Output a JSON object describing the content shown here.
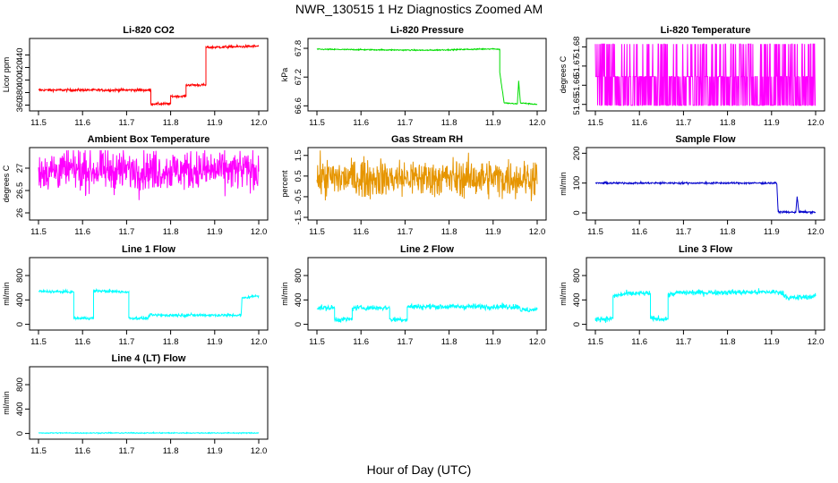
{
  "page": {
    "title": "NWR_130515  1 Hz Diagnostics Zoomed AM",
    "xlabel": "Hour of Day (UTC)"
  },
  "chart_data": [
    {
      "type": "line",
      "title": "Li-820 CO2",
      "ylabel": "Licor ppm",
      "xlim": [
        11.5,
        12.0
      ],
      "ylim": [
        355,
        462
      ],
      "x_ticks": [
        "11.5",
        "11.6",
        "11.7",
        "11.8",
        "11.9",
        "12.0"
      ],
      "y_ticks": [
        360,
        380,
        400,
        420,
        440
      ],
      "series": [
        {
          "color": "#ff0000",
          "noise": 1,
          "points": [
            [
              11.5,
              384
            ],
            [
              11.755,
              384
            ],
            [
              11.755,
              362
            ],
            [
              11.8,
              362
            ],
            [
              11.8,
              374
            ],
            [
              11.835,
              374
            ],
            [
              11.835,
              392
            ],
            [
              11.88,
              392
            ],
            [
              11.88,
              452
            ],
            [
              12.0,
              454
            ]
          ]
        }
      ]
    },
    {
      "type": "line",
      "title": "Li-820 Pressure",
      "ylabel": "kPa",
      "xlim": [
        11.5,
        12.0
      ],
      "ylim": [
        66.55,
        67.95
      ],
      "x_ticks": [
        "11.5",
        "11.6",
        "11.7",
        "11.8",
        "11.9",
        "12.0"
      ],
      "y_ticks": [
        66.6,
        67.2,
        67.8
      ],
      "series": [
        {
          "color": "#00dd00",
          "noise": 0.006,
          "points": [
            [
              11.5,
              67.78
            ],
            [
              11.75,
              67.76
            ],
            [
              11.9,
              67.79
            ],
            [
              11.915,
              67.78
            ],
            [
              11.915,
              67.3
            ],
            [
              11.925,
              66.66
            ],
            [
              11.955,
              66.64
            ],
            [
              11.958,
              67.12
            ],
            [
              11.962,
              66.66
            ],
            [
              12.0,
              66.63
            ]
          ]
        }
      ]
    },
    {
      "type": "line",
      "title": "Li-820 Temperature",
      "ylabel": "degrees C",
      "xlim": [
        11.5,
        12.0
      ],
      "ylim": [
        51.648,
        51.683
      ],
      "x_ticks": [
        "11.5",
        "11.6",
        "11.7",
        "11.8",
        "11.9",
        "12.0"
      ],
      "y_ticks": [
        51.65,
        51.66,
        51.67,
        51.68
      ],
      "series": [
        {
          "color": "#ff00ff",
          "kind": "quantized",
          "levels": [
            51.6495,
            51.6645,
            51.6815
          ],
          "points": [
            [
              11.5,
              51.665
            ],
            [
              12.0,
              51.665
            ]
          ]
        }
      ]
    },
    {
      "type": "line",
      "title": "Ambient Box Temperature",
      "ylabel": "degrees C",
      "xlim": [
        11.5,
        12.0
      ],
      "ylim": [
        25.9,
        27.4
      ],
      "x_ticks": [
        "11.5",
        "11.6",
        "11.7",
        "11.8",
        "11.9",
        "12.0"
      ],
      "y_ticks": [
        26.0,
        26.5,
        27.0
      ],
      "series": [
        {
          "color": "#ff00ff",
          "noise": 0.22,
          "points": [
            [
              11.5,
              26.95
            ],
            [
              12.0,
              26.95
            ]
          ]
        }
      ]
    },
    {
      "type": "line",
      "title": "Gas Stream RH",
      "ylabel": "percent",
      "xlim": [
        11.5,
        12.0
      ],
      "ylim": [
        -1.5,
        1.75
      ],
      "x_ticks": [
        "11.5",
        "11.6",
        "11.7",
        "11.8",
        "11.9",
        "12.0"
      ],
      "y_ticks": [
        -1.5,
        -0.5,
        0.5,
        1.5
      ],
      "series": [
        {
          "color": "#e69500",
          "noise": 0.45,
          "points": [
            [
              11.5,
              0.4
            ],
            [
              12.0,
              0.4
            ]
          ]
        }
      ]
    },
    {
      "type": "line",
      "title": "Sample Flow",
      "ylabel": "ml/min",
      "xlim": [
        11.5,
        12.0
      ],
      "ylim": [
        -15,
        210
      ],
      "x_ticks": [
        "11.5",
        "11.6",
        "11.7",
        "11.8",
        "11.9",
        "12.0"
      ],
      "y_ticks": [
        0,
        100,
        200
      ],
      "series": [
        {
          "color": "#0000cc",
          "noise": 1.5,
          "points": [
            [
              11.5,
              100
            ],
            [
              11.91,
              100
            ],
            [
              11.912,
              96
            ],
            [
              11.915,
              3
            ],
            [
              11.955,
              2
            ],
            [
              11.958,
              55
            ],
            [
              11.962,
              3
            ],
            [
              12.0,
              2
            ]
          ]
        }
      ]
    },
    {
      "type": "line",
      "title": "Line 1 Flow",
      "ylabel": "ml/min",
      "xlim": [
        11.5,
        12.0
      ],
      "ylim": [
        -50,
        1050
      ],
      "x_ticks": [
        "11.5",
        "11.6",
        "11.7",
        "11.8",
        "11.9",
        "12.0"
      ],
      "y_ticks": [
        0,
        400,
        800
      ],
      "series": [
        {
          "color": "#00ffff",
          "noise": 12,
          "points": [
            [
              11.5,
              540
            ],
            [
              11.58,
              530
            ],
            [
              11.58,
              100
            ],
            [
              11.625,
              100
            ],
            [
              11.625,
              550
            ],
            [
              11.705,
              530
            ],
            [
              11.705,
              100
            ],
            [
              11.75,
              100
            ],
            [
              11.75,
              150
            ],
            [
              11.96,
              150
            ],
            [
              11.962,
              430
            ],
            [
              12.0,
              470
            ]
          ]
        }
      ]
    },
    {
      "type": "line",
      "title": "Line 2 Flow",
      "ylabel": "ml/min",
      "xlim": [
        11.5,
        12.0
      ],
      "ylim": [
        -50,
        1050
      ],
      "x_ticks": [
        "11.5",
        "11.6",
        "11.7",
        "11.8",
        "11.9",
        "12.0"
      ],
      "y_ticks": [
        0,
        400,
        800
      ],
      "series": [
        {
          "color": "#00ffff",
          "noise": 22,
          "points": [
            [
              11.5,
              270
            ],
            [
              11.54,
              270
            ],
            [
              11.54,
              80
            ],
            [
              11.58,
              80
            ],
            [
              11.58,
              270
            ],
            [
              11.665,
              270
            ],
            [
              11.665,
              80
            ],
            [
              11.705,
              80
            ],
            [
              11.705,
              290
            ],
            [
              11.96,
              290
            ],
            [
              11.962,
              230
            ],
            [
              12.0,
              240
            ]
          ]
        }
      ]
    },
    {
      "type": "line",
      "title": "Line 3 Flow",
      "ylabel": "ml/min",
      "xlim": [
        11.5,
        12.0
      ],
      "ylim": [
        -50,
        1050
      ],
      "x_ticks": [
        "11.5",
        "11.6",
        "11.7",
        "11.8",
        "11.9",
        "12.0"
      ],
      "y_ticks": [
        0,
        400,
        800
      ],
      "series": [
        {
          "color": "#00ffff",
          "noise": 22,
          "points": [
            [
              11.5,
              90
            ],
            [
              11.54,
              90
            ],
            [
              11.54,
              460
            ],
            [
              11.57,
              500
            ],
            [
              11.625,
              510
            ],
            [
              11.625,
              90
            ],
            [
              11.665,
              90
            ],
            [
              11.665,
              480
            ],
            [
              11.69,
              520
            ],
            [
              11.92,
              530
            ],
            [
              11.94,
              430
            ],
            [
              12.0,
              460
            ]
          ]
        }
      ]
    },
    {
      "type": "line",
      "title": "Line 4 (LT) Flow",
      "ylabel": "ml/min",
      "xlim": [
        11.5,
        12.0
      ],
      "ylim": [
        -50,
        1050
      ],
      "x_ticks": [
        "11.5",
        "11.6",
        "11.7",
        "11.8",
        "11.9",
        "12.0"
      ],
      "y_ticks": [
        0,
        400,
        800
      ],
      "series": [
        {
          "color": "#00ffff",
          "noise": 4,
          "points": [
            [
              11.5,
              8
            ],
            [
              12.0,
              8
            ]
          ]
        }
      ]
    }
  ]
}
